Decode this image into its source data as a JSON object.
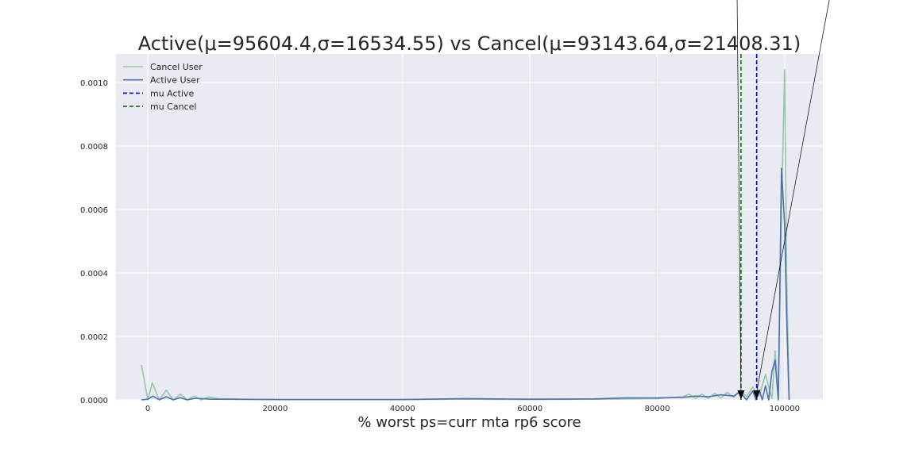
{
  "chart_data": {
    "type": "line",
    "title": "Active(μ=95604.4,σ=16534.55) vs Cancel(μ=93143.64,σ=21408.31)",
    "xlabel": "% worst ps=curr mta rp6 score",
    "ylabel": "",
    "xlim": [
      -5000,
      106000
    ],
    "ylim": [
      0,
      0.00109
    ],
    "grid": true,
    "legend_position": "top-left",
    "x_ticks": [
      {
        "value": 0,
        "label": "0"
      },
      {
        "value": 20000,
        "label": "20000"
      },
      {
        "value": 40000,
        "label": "40000"
      },
      {
        "value": 60000,
        "label": "60000"
      },
      {
        "value": 80000,
        "label": "80000"
      },
      {
        "value": 100000,
        "label": "100000"
      }
    ],
    "y_ticks": [
      {
        "value": 0,
        "label": "0.0000"
      },
      {
        "value": 0.0002,
        "label": "0.0002"
      },
      {
        "value": 0.0004,
        "label": "0.0004"
      },
      {
        "value": 0.0006,
        "label": "0.0006"
      },
      {
        "value": 0.0008,
        "label": "0.0008"
      },
      {
        "value": 0.001,
        "label": "0.0010"
      }
    ],
    "series": [
      {
        "name": "Cancel User",
        "color": "#98c6a5",
        "style": "solid",
        "x": [
          -1000,
          0,
          700,
          1800,
          2900,
          4000,
          5100,
          6200,
          7300,
          8400,
          9500,
          11000,
          13000,
          15000,
          20000,
          30000,
          40000,
          50000,
          60000,
          70000,
          80000,
          84000,
          85000,
          86000,
          87000,
          88000,
          89000,
          90000,
          91000,
          92000,
          93000,
          94000,
          95000,
          96000,
          97000,
          98000,
          98500,
          99000,
          99500,
          100000,
          100300,
          100700
        ],
        "y": [
          0.00011,
          0.0,
          5.4e-05,
          0.0,
          3.1e-05,
          0.0,
          1.8e-05,
          0.0,
          1.2e-05,
          0.0,
          9e-06,
          4e-06,
          3e-06,
          2e-06,
          1e-06,
          1e-06,
          1e-06,
          2e-06,
          1e-06,
          2e-06,
          4e-06,
          1e-05,
          1.8e-05,
          4e-06,
          1.8e-05,
          4e-06,
          2e-05,
          6e-06,
          2.4e-05,
          8e-06,
          3e-05,
          1e-05,
          4e-05,
          1.2e-05,
          8e-05,
          4e-06,
          0.000155,
          0.0,
          0.0006,
          0.00104,
          0.0004,
          0.0
        ]
      },
      {
        "name": "Active User",
        "color": "#4c72b0",
        "style": "solid",
        "x": [
          -1000,
          0,
          800,
          1800,
          2900,
          4000,
          5100,
          6200,
          7500,
          10000,
          20000,
          30000,
          40000,
          50000,
          60000,
          70000,
          75000,
          80000,
          84000,
          86000,
          88000,
          90000,
          92000,
          93000,
          94000,
          95000,
          95500,
          96000,
          96500,
          97000,
          97500,
          98000,
          98500,
          99000,
          99500,
          100000,
          100300,
          100700
        ],
        "y": [
          0.0,
          2e-06,
          1.2e-05,
          0.0,
          1e-05,
          0.0,
          7e-06,
          0.0,
          5e-06,
          2e-06,
          1e-06,
          1e-06,
          1e-06,
          4e-06,
          2e-06,
          3e-06,
          6e-06,
          6e-06,
          8e-06,
          1.2e-05,
          1e-05,
          1.6e-05,
          1.2e-05,
          2.5e-05,
          0.0,
          2.8e-05,
          0.0,
          3.2e-05,
          0.0,
          4.5e-05,
          0.0,
          9e-05,
          0.000125,
          0.0,
          0.00073,
          0.00055,
          0.00027,
          0.0
        ]
      },
      {
        "name": "mu Active",
        "color": "#0000ff",
        "style": "dashed",
        "vline": 95604.4
      },
      {
        "name": "mu Cancel",
        "color": "#008000",
        "style": "dashed",
        "vline": 93143.64
      }
    ]
  }
}
